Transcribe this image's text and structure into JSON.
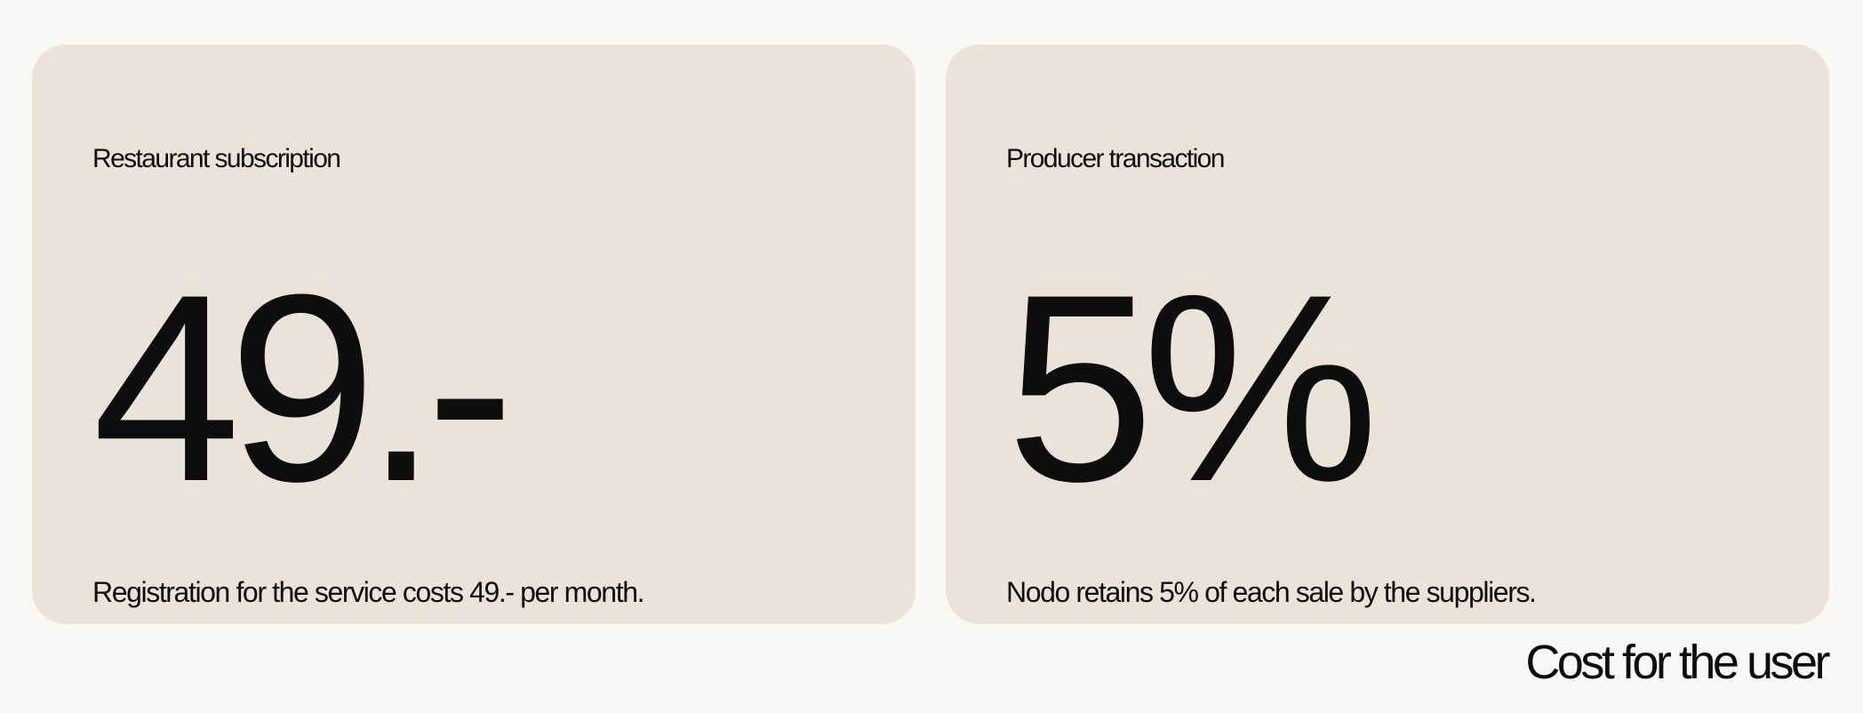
{
  "cards": [
    {
      "label": "Restaurant subscription",
      "value": "49.-",
      "description": "Registration for the service costs 49.- per month."
    },
    {
      "label": "Producer transaction",
      "value": "5%",
      "description": "Nodo retains 5% of each sale by the suppliers."
    }
  ],
  "caption": "Cost for the user",
  "colors": {
    "page_background": "#faf8f4",
    "card_background": "#ebe3d7",
    "text": "#0d0d0d"
  }
}
